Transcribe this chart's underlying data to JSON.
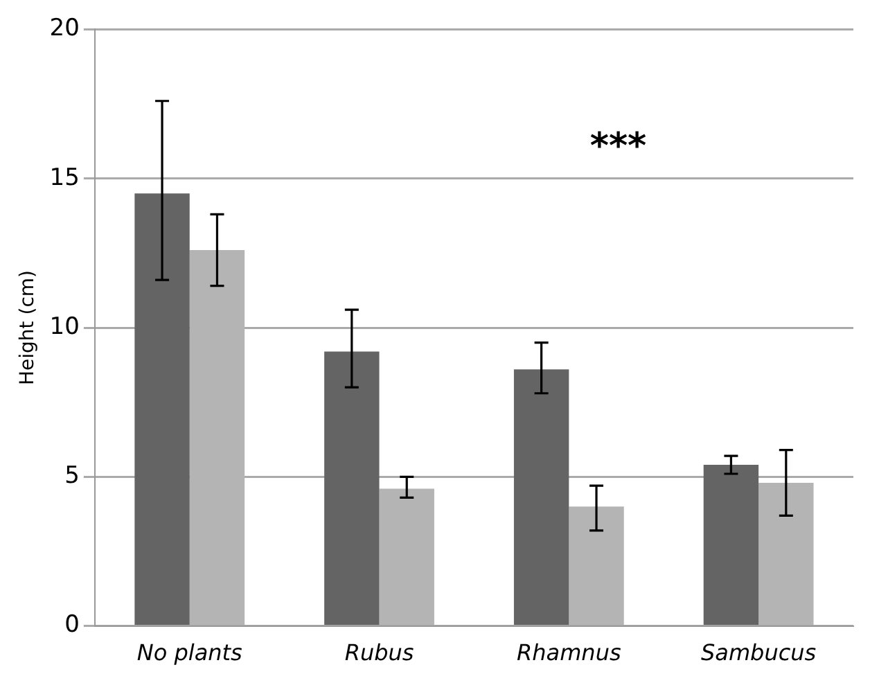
{
  "chart_data": {
    "type": "bar",
    "ylabel": "Height (cm)",
    "categories": [
      "No plants",
      "Rubus",
      "Rhamnus",
      "Sambucus"
    ],
    "series": [
      {
        "color": "#646464",
        "values": [
          14.5,
          9.2,
          8.6,
          5.4
        ],
        "errors": [
          [
            11.6,
            17.6
          ],
          [
            8.0,
            10.6
          ],
          [
            7.8,
            9.5
          ],
          [
            5.1,
            5.7
          ]
        ]
      },
      {
        "color": "#b4b4b4",
        "values": [
          12.6,
          4.6,
          4.0,
          4.8
        ],
        "errors": [
          [
            11.4,
            13.8
          ],
          [
            4.3,
            5.0
          ],
          [
            3.2,
            4.7
          ],
          [
            3.7,
            5.9
          ]
        ]
      }
    ],
    "ylim": [
      0,
      20
    ],
    "yticks": [
      0,
      5,
      10,
      15,
      20
    ],
    "grid": "y",
    "legend": false,
    "annotations": [
      "***"
    ]
  }
}
